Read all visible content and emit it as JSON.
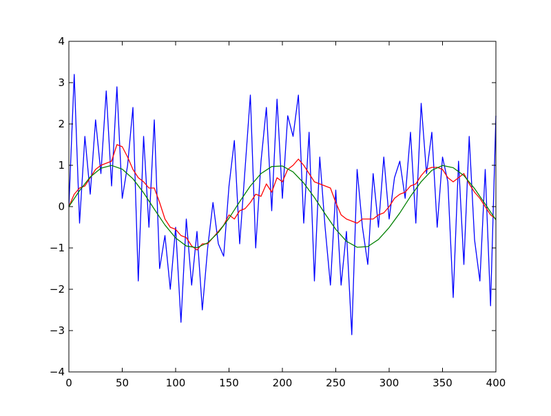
{
  "chart_data": {
    "type": "line",
    "title": "",
    "xlabel": "",
    "ylabel": "",
    "xlim": [
      0,
      400
    ],
    "ylim": [
      -4,
      4
    ],
    "xticks": [
      0,
      50,
      100,
      150,
      200,
      250,
      300,
      350,
      400
    ],
    "yticks": [
      -4,
      -3,
      -2,
      -1,
      0,
      1,
      2,
      3,
      4
    ],
    "xtick_labels": [
      "0",
      "50",
      "100",
      "150",
      "200",
      "250",
      "300",
      "350",
      "400"
    ],
    "ytick_labels": [
      "−4",
      "−3",
      "−2",
      "−1",
      "0",
      "1",
      "2",
      "3",
      "4"
    ],
    "grid": false,
    "series": [
      {
        "color": "#0000ff",
        "x": [
          0,
          5,
          10,
          15,
          20,
          25,
          30,
          35,
          40,
          45,
          50,
          55,
          60,
          65,
          70,
          75,
          80,
          85,
          90,
          95,
          100,
          105,
          110,
          115,
          120,
          125,
          130,
          135,
          140,
          145,
          150,
          155,
          160,
          165,
          170,
          175,
          180,
          185,
          190,
          195,
          200,
          205,
          210,
          215,
          220,
          225,
          230,
          235,
          240,
          245,
          250,
          255,
          260,
          265,
          270,
          275,
          280,
          285,
          290,
          295,
          300,
          305,
          310,
          315,
          320,
          325,
          330,
          335,
          340,
          345,
          350,
          355,
          360,
          365,
          370,
          375,
          380,
          385,
          390,
          395,
          400
        ],
        "values": [
          0.0,
          3.2,
          -0.4,
          1.7,
          0.3,
          2.1,
          0.8,
          2.8,
          0.5,
          2.9,
          0.2,
          1.0,
          2.4,
          -1.8,
          1.7,
          -0.5,
          2.1,
          -1.5,
          -0.7,
          -2.0,
          -0.5,
          -2.8,
          -0.3,
          -1.9,
          -0.6,
          -2.5,
          -1.0,
          0.1,
          -0.9,
          -1.2,
          0.5,
          1.6,
          -0.9,
          0.9,
          2.7,
          -1.0,
          1.1,
          2.4,
          -0.1,
          2.6,
          0.2,
          2.2,
          1.7,
          2.7,
          -0.4,
          1.8,
          -1.8,
          1.2,
          -0.5,
          -1.9,
          0.4,
          -1.9,
          -0.6,
          -3.1,
          0.9,
          -0.5,
          -1.4,
          0.8,
          -0.5,
          1.2,
          -0.3,
          0.7,
          1.1,
          0.2,
          1.8,
          -0.4,
          2.5,
          0.8,
          1.8,
          -0.5,
          1.2,
          0.6,
          -2.2,
          1.1,
          -1.4,
          1.7,
          -0.8,
          -1.8,
          0.9,
          -2.4,
          2.2
        ]
      },
      {
        "color": "#ff0000",
        "x": [
          0,
          5,
          10,
          15,
          20,
          25,
          30,
          35,
          40,
          45,
          50,
          55,
          60,
          65,
          70,
          75,
          80,
          85,
          90,
          95,
          100,
          105,
          110,
          115,
          120,
          125,
          130,
          135,
          140,
          145,
          150,
          155,
          160,
          165,
          170,
          175,
          180,
          185,
          190,
          195,
          200,
          205,
          210,
          215,
          220,
          225,
          230,
          235,
          240,
          245,
          250,
          255,
          260,
          265,
          270,
          275,
          280,
          285,
          290,
          295,
          300,
          305,
          310,
          315,
          320,
          325,
          330,
          335,
          340,
          345,
          350,
          355,
          360,
          365,
          370,
          375,
          380,
          385,
          390,
          395,
          400
        ],
        "values": [
          0.0,
          0.3,
          0.45,
          0.5,
          0.7,
          0.9,
          1.0,
          1.05,
          1.1,
          1.5,
          1.45,
          1.2,
          0.9,
          0.7,
          0.6,
          0.45,
          0.45,
          0.1,
          -0.3,
          -0.5,
          -0.55,
          -0.7,
          -0.75,
          -0.95,
          -1.05,
          -0.9,
          -0.9,
          -0.75,
          -0.6,
          -0.45,
          -0.2,
          -0.3,
          -0.1,
          -0.05,
          0.1,
          0.3,
          0.25,
          0.55,
          0.35,
          0.7,
          0.6,
          0.9,
          1.0,
          1.15,
          1.0,
          0.8,
          0.6,
          0.55,
          0.5,
          0.45,
          0.1,
          -0.2,
          -0.3,
          -0.35,
          -0.4,
          -0.3,
          -0.3,
          -0.3,
          -0.2,
          -0.15,
          0.0,
          0.2,
          0.3,
          0.35,
          0.5,
          0.55,
          0.75,
          0.9,
          0.95,
          0.95,
          0.9,
          0.7,
          0.6,
          0.7,
          0.8,
          0.55,
          0.35,
          0.2,
          0.0,
          -0.2,
          -0.3
        ]
      },
      {
        "color": "#008000",
        "x": [
          0,
          10,
          20,
          30,
          40,
          50,
          60,
          70,
          80,
          90,
          100,
          110,
          120,
          130,
          140,
          150,
          160,
          170,
          180,
          190,
          200,
          210,
          220,
          230,
          240,
          250,
          260,
          270,
          280,
          290,
          300,
          310,
          320,
          330,
          340,
          350,
          360,
          370,
          380,
          390,
          400
        ],
        "values": [
          0.0,
          0.388,
          0.716,
          0.929,
          0.997,
          0.907,
          0.674,
          0.335,
          -0.06,
          -0.445,
          -0.758,
          -0.953,
          -0.993,
          -0.876,
          -0.626,
          -0.28,
          0.12,
          0.5,
          0.8,
          0.97,
          0.983,
          0.84,
          0.571,
          0.221,
          -0.175,
          -0.55,
          -0.839,
          -0.983,
          -0.967,
          -0.795,
          -0.507,
          -0.153,
          0.247,
          0.604,
          0.878,
          0.996,
          0.942,
          0.752,
          0.437,
          0.06,
          -0.32
        ]
      }
    ]
  }
}
